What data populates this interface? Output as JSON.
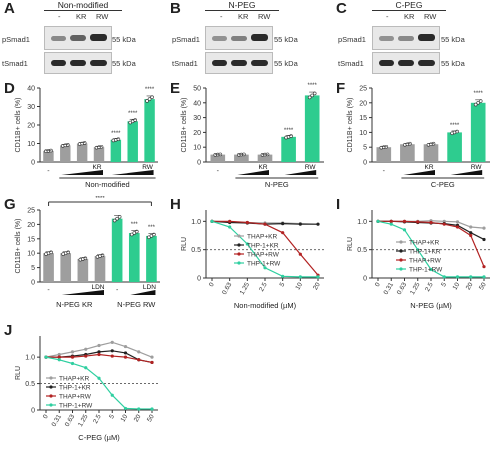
{
  "colors": {
    "grey": "#9e9e9e",
    "green": "#2ecc8f",
    "red": "#b22222",
    "dark": "#222222",
    "teal": "#2ecfa0"
  },
  "panel_a": {
    "label": "A",
    "title": "Non-modified",
    "lanes": [
      "-",
      "KR",
      "RW"
    ],
    "row1": "pSmad1",
    "row2": "tSmad1",
    "kda1": "55 kDa",
    "kda2": "55 kDa"
  },
  "panel_b": {
    "label": "B",
    "title": "N-PEG",
    "lanes": [
      "-",
      "KR",
      "RW"
    ],
    "row1": "pSmad1",
    "row2": "tSmad1",
    "kda1": "55 kDa",
    "kda2": "55 kDa"
  },
  "panel_c": {
    "label": "C",
    "title": "C-PEG",
    "lanes": [
      "-",
      "KR",
      "RW"
    ],
    "row1": "pSmad1",
    "row2": "tSmad1",
    "kda1": "55 kDa",
    "kda2": "55 kDa"
  },
  "labels": {
    "D": "D",
    "E": "E",
    "F": "F",
    "G": "G",
    "H": "H",
    "I": "I",
    "J": "J"
  },
  "chart_data": [
    {
      "id": "D",
      "type": "bar",
      "ylabel": "CD11B+ cells (%)",
      "ylim": [
        0,
        40
      ],
      "yticks": [
        0,
        10,
        20,
        30,
        40
      ],
      "values": [
        6,
        9,
        10,
        8,
        12,
        22,
        34
      ],
      "colors": [
        "g",
        "g",
        "g",
        "g",
        "t",
        "t",
        "t"
      ],
      "sig": [
        "",
        "",
        "",
        "",
        "****",
        "****",
        "****"
      ],
      "group_kr": "KR",
      "group_rw": "RW",
      "xgroup": "Non-modified",
      "xfirst": "-"
    },
    {
      "id": "E",
      "type": "bar",
      "ylabel": "CD11B+ cells (%)",
      "ylim": [
        0,
        50
      ],
      "yticks": [
        0,
        10,
        20,
        30,
        40,
        50
      ],
      "values": [
        5,
        5,
        5,
        17,
        45
      ],
      "colors": [
        "g",
        "g",
        "g",
        "t",
        "t"
      ],
      "sig": [
        "",
        "",
        "",
        "****",
        "****"
      ],
      "group_kr": "KR",
      "group_rw": "RW",
      "xgroup": "N-PEG",
      "xfirst": "-"
    },
    {
      "id": "F",
      "type": "bar",
      "ylabel": "CD11B+ cells (%)",
      "ylim": [
        0,
        25
      ],
      "yticks": [
        0,
        5,
        10,
        15,
        20,
        25
      ],
      "values": [
        5,
        6,
        6,
        10,
        20
      ],
      "colors": [
        "g",
        "g",
        "g",
        "t",
        "t"
      ],
      "sig": [
        "",
        "",
        "",
        "****",
        "****"
      ],
      "group_kr": "KR",
      "group_rw": "RW",
      "xgroup": "C-PEG",
      "xfirst": "-"
    },
    {
      "id": "G",
      "type": "bar",
      "ylabel": "CD11B+ cells (%)",
      "ylim": [
        0,
        25
      ],
      "yticks": [
        0,
        5,
        10,
        15,
        20,
        25
      ],
      "values": [
        10,
        10,
        8,
        9,
        22,
        17,
        16
      ],
      "colors": [
        "g",
        "g",
        "g",
        "g",
        "t",
        "t",
        "t"
      ],
      "sig": [
        "",
        "",
        "",
        "",
        "",
        "***",
        "***"
      ],
      "top_sig": "****",
      "xlabel_left": "N-PEG KR",
      "xlabel_right": "N-PEG RW",
      "ldn": "LDN",
      "xfirst": "-"
    },
    {
      "id": "H",
      "type": "line",
      "ylabel": "RLU",
      "xlabel": "Non-modified (µM)",
      "ylim": [
        0,
        1.2
      ],
      "yticks": [
        "0",
        "0.5",
        "1.0"
      ],
      "xticks": [
        "0",
        "0.63",
        "1.25",
        "2.5",
        "5",
        "10",
        "20"
      ],
      "series": [
        {
          "name": "THAP+KR",
          "color": "grey",
          "values": [
            1.0,
            0.99,
            0.98,
            0.97,
            0.97,
            0.96,
            0.95
          ]
        },
        {
          "name": "THP-1+KR",
          "color": "dark",
          "values": [
            1.0,
            0.98,
            0.97,
            0.95,
            0.96,
            0.95,
            0.95
          ]
        },
        {
          "name": "THAP+RW",
          "color": "red",
          "values": [
            1.0,
            1.0,
            0.98,
            0.95,
            0.8,
            0.42,
            0.05
          ]
        },
        {
          "name": "THP-1+RW",
          "color": "teal",
          "values": [
            1.0,
            0.9,
            0.6,
            0.18,
            0.03,
            0.02,
            0.02
          ]
        }
      ]
    },
    {
      "id": "I",
      "type": "line",
      "ylabel": "RLU",
      "xlabel": "N-PEG (µM)",
      "ylim": [
        0,
        1.2
      ],
      "yticks": [
        "0",
        "0.5",
        "1.0"
      ],
      "xticks": [
        "0",
        "0.31",
        "0.63",
        "1.25",
        "2.5",
        "5",
        "10",
        "20",
        "50"
      ],
      "series": [
        {
          "name": "THAP+KR",
          "color": "grey",
          "values": [
            1.0,
            1.0,
            1.0,
            1.0,
            1.01,
            1.0,
            0.99,
            0.9,
            0.88
          ]
        },
        {
          "name": "THP-1+KR",
          "color": "dark",
          "values": [
            1.0,
            1.0,
            0.99,
            0.98,
            0.97,
            0.96,
            0.93,
            0.8,
            0.68
          ]
        },
        {
          "name": "THAP+RW",
          "color": "red",
          "values": [
            1.0,
            1.0,
            1.0,
            0.99,
            0.98,
            0.95,
            0.9,
            0.75,
            0.2
          ]
        },
        {
          "name": "THP-1+RW",
          "color": "teal",
          "values": [
            1.0,
            0.95,
            0.85,
            0.5,
            0.15,
            0.02,
            0.02,
            0.02,
            0.02
          ]
        }
      ]
    },
    {
      "id": "J",
      "type": "line",
      "ylabel": "RLU",
      "xlabel": "C-PEG (µM)",
      "ylim": [
        0,
        1.4
      ],
      "yticks": [
        "0",
        "0.5",
        "1.0"
      ],
      "xticks": [
        "0",
        "0.31",
        "0.63",
        "1.25",
        "2.5",
        "5",
        "10",
        "20",
        "50"
      ],
      "series": [
        {
          "name": "THAP+KR",
          "color": "grey",
          "values": [
            1.0,
            1.05,
            1.1,
            1.15,
            1.22,
            1.28,
            1.2,
            1.1,
            1.0
          ]
        },
        {
          "name": "THP-1+KR",
          "color": "dark",
          "values": [
            1.0,
            1.0,
            1.02,
            1.05,
            1.1,
            1.12,
            1.08,
            0.95,
            0.9
          ]
        },
        {
          "name": "THAP+RW",
          "color": "red",
          "values": [
            1.0,
            1.0,
            1.0,
            1.02,
            1.05,
            1.02,
            1.0,
            0.95,
            0.9
          ]
        },
        {
          "name": "THP-1+RW",
          "color": "teal",
          "values": [
            1.0,
            0.95,
            0.88,
            0.8,
            0.6,
            0.28,
            0.03,
            0.02,
            0.02
          ]
        }
      ]
    }
  ]
}
